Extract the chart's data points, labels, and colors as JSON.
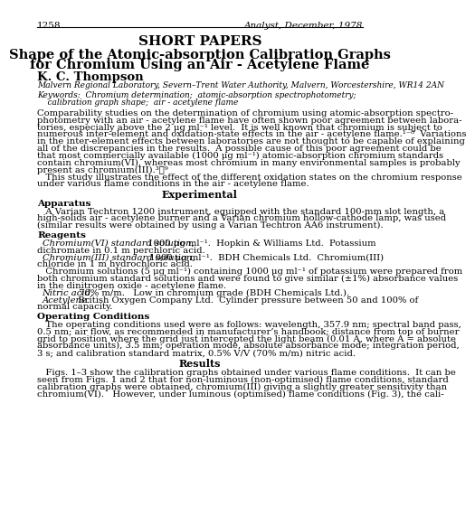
{
  "page_number": "1258",
  "journal": "Analyst, December, 1978",
  "section_title": "SHORT PAPERS",
  "article_title_line1": "Shape of the Atomic-absorption Calibration Graphs",
  "article_title_line2": "for Chromium Using an Air - Acetylene Flame",
  "author": "K. C. Thompson",
  "affiliation": "Malvern Regional Laboratory, Severn–Trent Water Authority, Malvern, Worcestershire, WR14 2AN",
  "bg_color": "#ffffff",
  "text_color": "#000000",
  "lh": 10.2
}
